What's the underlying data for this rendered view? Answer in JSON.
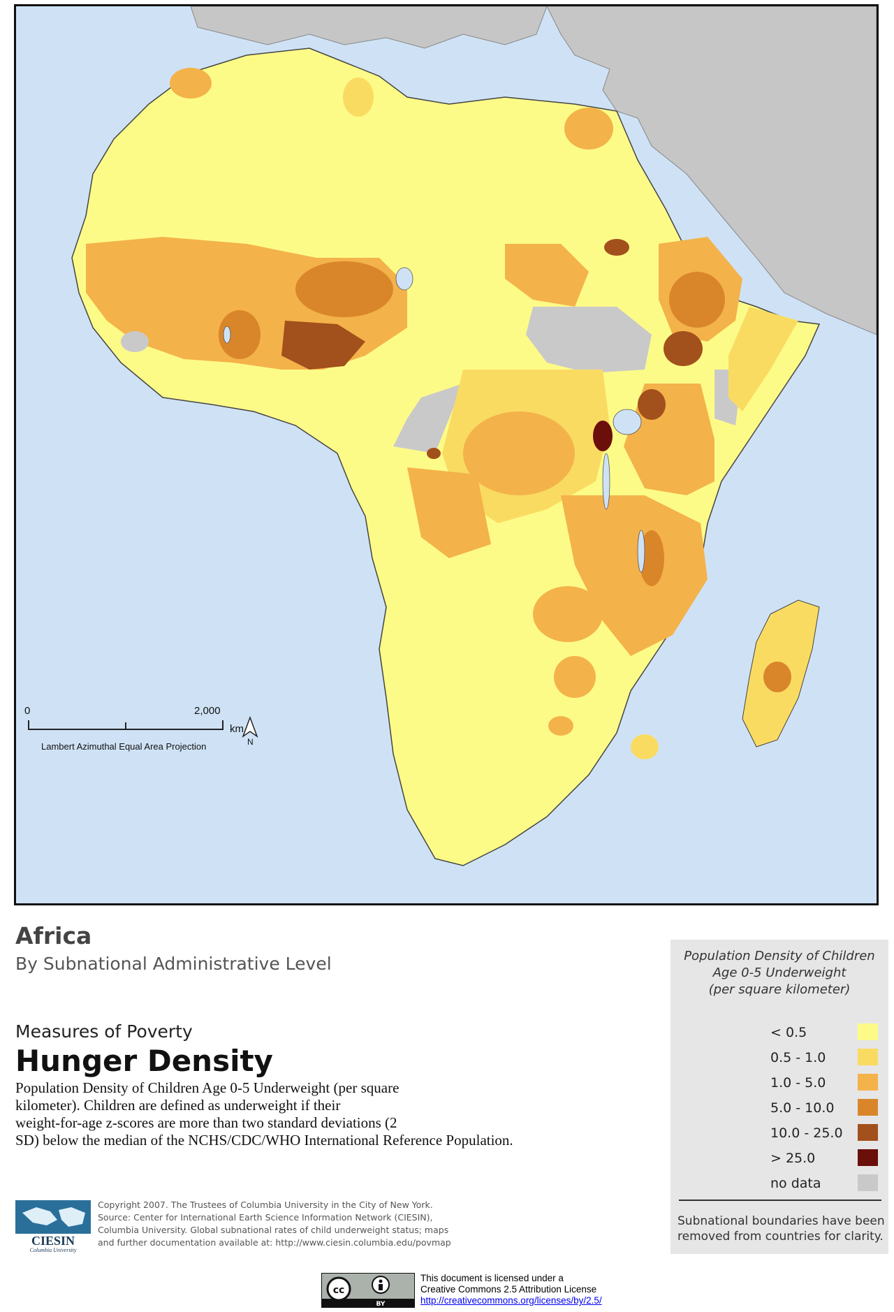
{
  "map": {
    "scale_zero": "0",
    "scale_max": "2,000",
    "scale_unit": "km",
    "north": "N",
    "projection": "Lambert Azimuthal Equal Area Projection"
  },
  "header": {
    "title": "Africa",
    "subtitle": "By Subnational Administrative Level",
    "series": "Measures of Poverty",
    "theme": "Hunger Density",
    "description": [
      "Population Density of Children  Age 0-5 Underweight (per square",
      "kilometer). Children are defined as underweight if their",
      "weight-for-age z-scores are more  than two standard deviations (2",
      "SD) below the median of the NCHS/CDC/WHO International Reference Population."
    ]
  },
  "credits": {
    "logo_text": "CIESIN",
    "logo_sub": "Columbia University",
    "lines": [
      "Copyright 2007. The Trustees of Columbia University in the City of New York.",
      "Source: Center for International Earth Science Information Network (CIESIN),",
      "Columbia University. Global subnational rates of child underweight status; maps",
      "and further documentation available at: http://www.ciesin.columbia.edu/povmap"
    ]
  },
  "legend": {
    "title": [
      "Population Density of Children",
      "Age 0-5 Underweight",
      "(per square kilometer)"
    ],
    "items": [
      {
        "label": "< 0.5",
        "color": "#fdfb88"
      },
      {
        "label": "0.5 - 1.0",
        "color": "#fadb62"
      },
      {
        "label": "1.0 - 5.0",
        "color": "#f4b24a"
      },
      {
        "label": "5.0 - 10.0",
        "color": "#d9862b"
      },
      {
        "label": "10.0 - 25.0",
        "color": "#a2501c"
      },
      {
        "label": "> 25.0",
        "color": "#6a0f0a"
      },
      {
        "label": "no data",
        "color": "#c9c9c9"
      }
    ],
    "note": [
      "Subnational boundaries have been",
      "removed from countries for clarity."
    ]
  },
  "license": {
    "badge": "BY",
    "lines": [
      "This document is licensed under a",
      "Creative Commons 2.5 Attribution License"
    ],
    "url": "http://creativecommons.org/licenses/by/2.5/"
  },
  "colors": {
    "ocean": "#cfe2f5",
    "other_land": "#c6c6c6"
  }
}
